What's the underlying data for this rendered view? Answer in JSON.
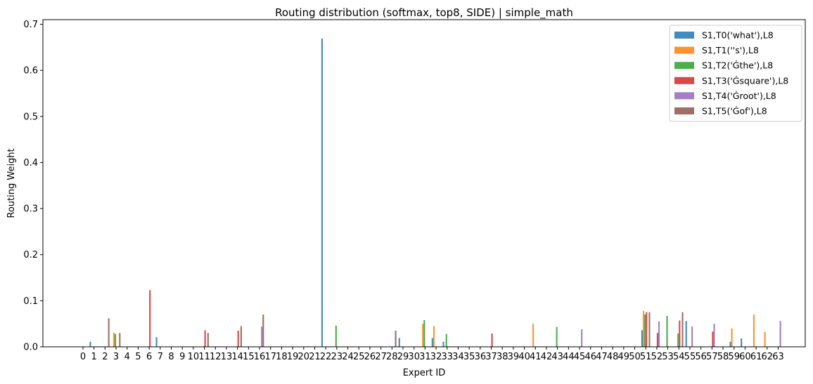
{
  "chart_data": {
    "type": "bar",
    "title": "Routing distribution (softmax, top8, SIDE) | simple_math",
    "xlabel": "Expert ID",
    "ylabel": "Routing Weight",
    "ylim": [
      0,
      0.71
    ],
    "yticks": [
      0.0,
      0.1,
      0.2,
      0.3,
      0.4,
      0.5,
      0.6,
      0.7
    ],
    "ytick_labels": [
      "0.0",
      "0.1",
      "0.2",
      "0.3",
      "0.4",
      "0.5",
      "0.6",
      "0.7"
    ],
    "categories": [
      "0",
      "1",
      "2",
      "3",
      "4",
      "5",
      "6",
      "7",
      "8",
      "9",
      "10",
      "11",
      "12",
      "13",
      "14",
      "15",
      "16",
      "17",
      "18",
      "19",
      "20",
      "21",
      "22",
      "23",
      "24",
      "25",
      "26",
      "27",
      "28",
      "29",
      "30",
      "31",
      "32",
      "33",
      "34",
      "35",
      "36",
      "37",
      "38",
      "39",
      "40",
      "41",
      "42",
      "43",
      "44",
      "45",
      "46",
      "47",
      "48",
      "49",
      "50",
      "51",
      "52",
      "53",
      "54",
      "55",
      "56",
      "57",
      "58",
      "59",
      "60",
      "61",
      "62",
      "63"
    ],
    "grid": false,
    "legend_position": "top-right",
    "series": [
      {
        "name": "S1,T0('what'),L8",
        "color": "#1f77b4",
        "points": [
          [
            1,
            0.011
          ],
          [
            7,
            0.021
          ],
          [
            22,
            0.669
          ],
          [
            29,
            0.019
          ],
          [
            32,
            0.019
          ],
          [
            33,
            0.011
          ],
          [
            51,
            0.036
          ],
          [
            55,
            0.056
          ],
          [
            59,
            0.011
          ],
          [
            60,
            0.018
          ]
        ]
      },
      {
        "name": "S1,T1(''s'),L8",
        "color": "#ff7f0e",
        "points": [
          [
            3,
            0.031
          ],
          [
            31,
            0.05
          ],
          [
            32,
            0.045
          ],
          [
            41,
            0.05
          ],
          [
            51,
            0.078
          ],
          [
            59,
            0.04
          ],
          [
            61,
            0.07
          ],
          [
            62,
            0.032
          ]
        ]
      },
      {
        "name": "S1,T2('Ġthe'),L8",
        "color": "#2ca02c",
        "points": [
          [
            3,
            0.028
          ],
          [
            23,
            0.046
          ],
          [
            31,
            0.058
          ],
          [
            33,
            0.028
          ],
          [
            43,
            0.043
          ],
          [
            51,
            0.07
          ],
          [
            53,
            0.067
          ],
          [
            54,
            0.029
          ]
        ]
      },
      {
        "name": "S1,T3('Ġsquare'),L8",
        "color": "#d62728",
        "points": [
          [
            6,
            0.123
          ],
          [
            11,
            0.036
          ],
          [
            14,
            0.035
          ],
          [
            37,
            0.029
          ],
          [
            51,
            0.075
          ],
          [
            52,
            0.03
          ],
          [
            54,
            0.057
          ],
          [
            57,
            0.033
          ]
        ]
      },
      {
        "name": "S1,T4('Ġroot'),L8",
        "color": "#9467bd",
        "points": [
          [
            16,
            0.044
          ],
          [
            45,
            0.038
          ],
          [
            52,
            0.055
          ],
          [
            55,
            0.044
          ],
          [
            57,
            0.05
          ],
          [
            63,
            0.056
          ]
        ]
      },
      {
        "name": "S1,T5('Ġof'),L8",
        "color": "#8c564b",
        "points": [
          [
            2,
            0.062
          ],
          [
            3,
            0.03
          ],
          [
            11,
            0.03
          ],
          [
            14,
            0.045
          ],
          [
            16,
            0.07
          ],
          [
            28,
            0.035
          ],
          [
            51,
            0.075
          ],
          [
            54,
            0.075
          ]
        ]
      }
    ]
  }
}
